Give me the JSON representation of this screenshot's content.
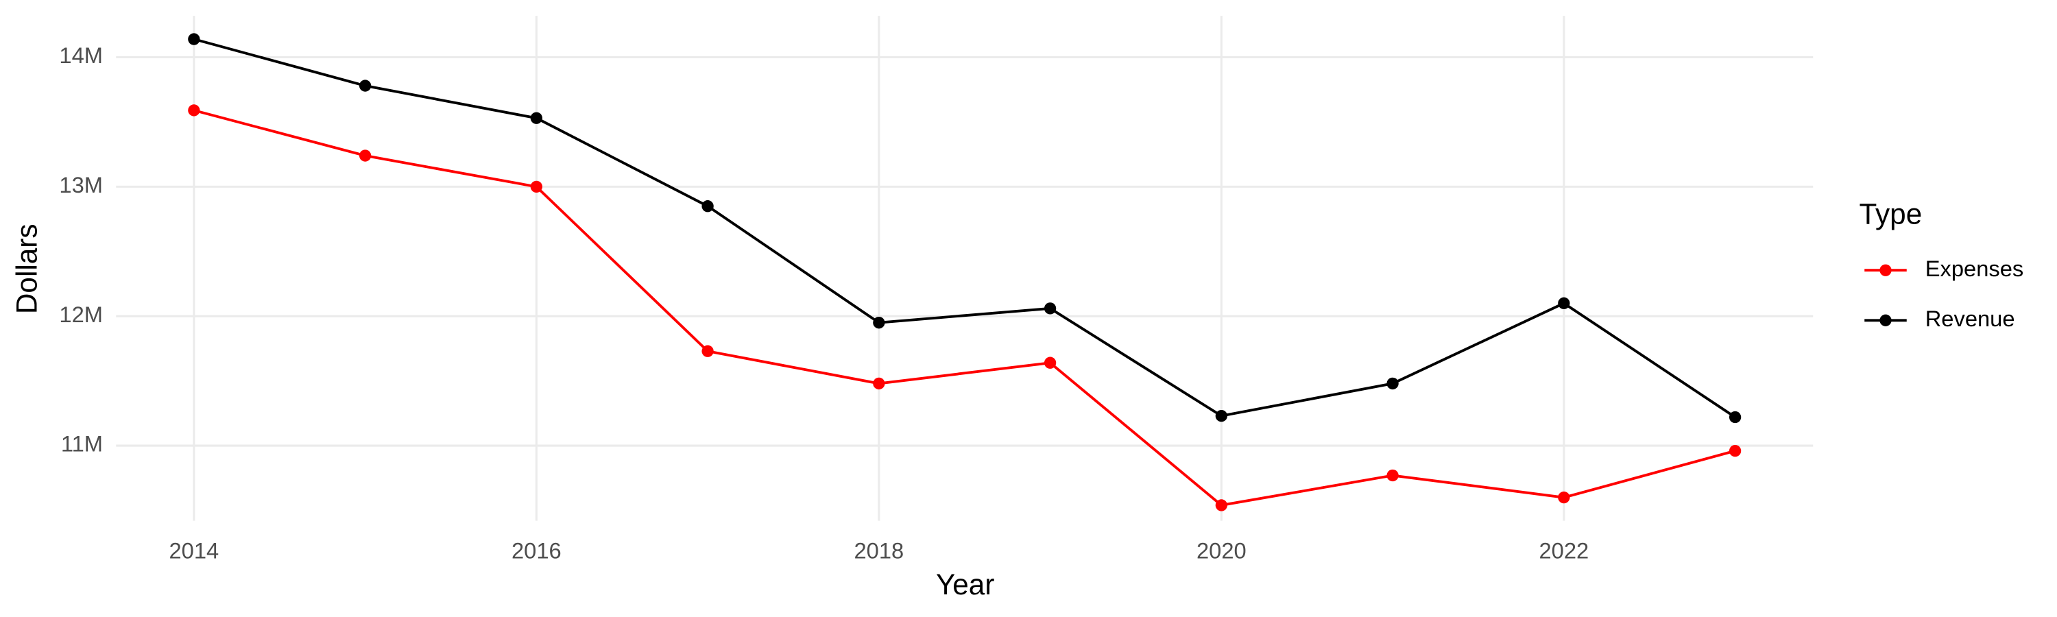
{
  "chart_data": {
    "type": "line",
    "x_label": "Year",
    "y_label": "Dollars",
    "legend_title": "Type",
    "legend_position": "right",
    "grid": true,
    "x": [
      2014,
      2015,
      2016,
      2017,
      2018,
      2019,
      2020,
      2021,
      2022,
      2023
    ],
    "series": [
      {
        "name": "Expenses",
        "color": "#ff0000",
        "values": [
          13590000,
          13240000,
          13000000,
          11730000,
          11480000,
          11640000,
          10540000,
          10770000,
          10600000,
          10960000
        ]
      },
      {
        "name": "Revenue",
        "color": "#000000",
        "values": [
          14140000,
          13780000,
          13530000,
          12850000,
          11950000,
          12060000,
          11230000,
          11480000,
          12100000,
          11220000
        ]
      }
    ],
    "xlim": [
      2013.545,
      2023.455
    ],
    "xticks": [
      2014,
      2016,
      2018,
      2020,
      2022
    ],
    "ylim": [
      10420000,
      14320000
    ],
    "yticks": [
      {
        "value": 11000000,
        "label": "11M"
      },
      {
        "value": 12000000,
        "label": "12M"
      },
      {
        "value": 13000000,
        "label": "13M"
      },
      {
        "value": 14000000,
        "label": "14M"
      }
    ]
  }
}
